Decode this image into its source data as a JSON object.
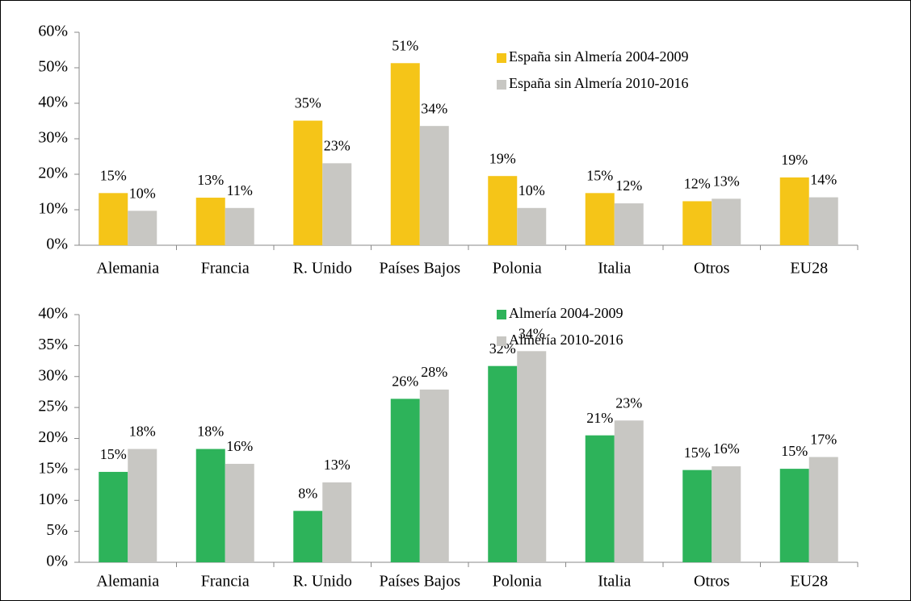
{
  "chart_data": [
    {
      "type": "bar",
      "categories": [
        "Alemania",
        "Francia",
        "R. Unido",
        "Países Bajos",
        "Polonia",
        "Italia",
        "Otros",
        "EU28"
      ],
      "series": [
        {
          "name": "España sin Almería 2004-2009",
          "color": "#f5c518",
          "values": [
            14.7,
            13.4,
            35.1,
            51.3,
            19.5,
            14.7,
            12.4,
            19.1
          ],
          "value_labels": [
            "15%",
            "13%",
            "35%",
            "51%",
            "19%",
            "15%",
            "12%",
            "19%"
          ]
        },
        {
          "name": "España sin Almería 2010-2016",
          "color": "#c8c7c3",
          "values": [
            9.7,
            10.5,
            23.1,
            33.6,
            10.5,
            11.8,
            13.1,
            13.5
          ],
          "value_labels": [
            "10%",
            "11%",
            "23%",
            "34%",
            "10%",
            "12%",
            "13%",
            "14%"
          ]
        }
      ],
      "ylim": [
        0,
        60
      ],
      "yticks": [
        {
          "value": 0,
          "label": "0%"
        },
        {
          "value": 10,
          "label": "10%"
        },
        {
          "value": 20,
          "label": "20%"
        },
        {
          "value": 30,
          "label": "30%"
        },
        {
          "value": 40,
          "label": "40%"
        },
        {
          "value": 50,
          "label": "50%"
        },
        {
          "value": 60,
          "label": "60%"
        }
      ]
    },
    {
      "type": "bar",
      "categories": [
        "Alemania",
        "Francia",
        "R. Unido",
        "Países Bajos",
        "Polonia",
        "Italia",
        "Otros",
        "EU28"
      ],
      "series": [
        {
          "name": "Almería 2004-2009",
          "color": "#2db35a",
          "values": [
            14.6,
            18.3,
            8.3,
            26.4,
            31.7,
            20.5,
            14.9,
            15.1
          ],
          "value_labels": [
            "15%",
            "18%",
            "8%",
            "26%",
            "32%",
            "21%",
            "15%",
            "15%"
          ]
        },
        {
          "name": "Almería 2010-2016",
          "color": "#c8c7c3",
          "values": [
            18.3,
            15.9,
            12.9,
            27.9,
            34.1,
            22.9,
            15.5,
            17.0
          ],
          "value_labels": [
            "18%",
            "16%",
            "13%",
            "28%",
            "34%",
            "23%",
            "16%",
            "17%"
          ]
        }
      ],
      "ylim": [
        0,
        40
      ],
      "yticks": [
        {
          "value": 0,
          "label": "0%"
        },
        {
          "value": 5,
          "label": "5%"
        },
        {
          "value": 10,
          "label": "10%"
        },
        {
          "value": 15,
          "label": "15%"
        },
        {
          "value": 20,
          "label": "20%"
        },
        {
          "value": 25,
          "label": "25%"
        },
        {
          "value": 30,
          "label": "30%"
        },
        {
          "value": 35,
          "label": "35%"
        },
        {
          "value": 40,
          "label": "40%"
        }
      ]
    }
  ]
}
